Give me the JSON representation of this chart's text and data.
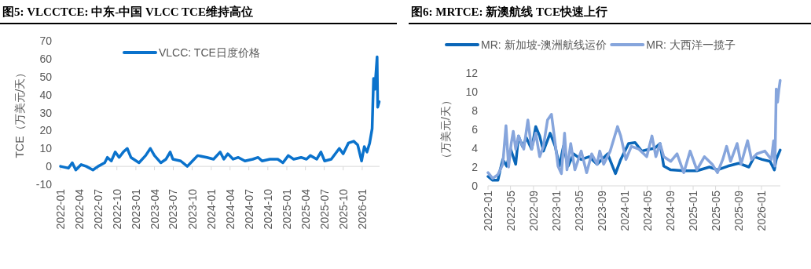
{
  "chart_data": [
    {
      "type": "line",
      "title": "图5:  VLCCTCE:  中东-中国 VLCC TCE维持高位",
      "ylabel": "TCE（万美元/天）",
      "legend": "top",
      "grid": false,
      "line_style": "solid",
      "xlim": [
        "2022-01-01",
        "2026-03-26"
      ],
      "ylim": [
        -10,
        70
      ],
      "yticks": [
        -10,
        0,
        10,
        20,
        30,
        40,
        50,
        60,
        70
      ],
      "xticks": [
        "2022-01",
        "2022-04",
        "2022-07",
        "2022-10",
        "2023-01",
        "2023-04",
        "2023-07",
        "2023-10",
        "2024-01",
        "2024-04",
        "2024-07",
        "2024-10",
        "2025-01",
        "2025-04",
        "2025-07",
        "2025-10",
        "2026-01"
      ],
      "series": [
        {
          "name": "VLCC:  TCE日度价格",
          "color": "#0a72cc",
          "x": [
            "2022-01-01",
            "2022-02-08",
            "2022-02-27",
            "2022-03-16",
            "2022-04-11",
            "2022-05-06",
            "2022-06-07",
            "2022-07-02",
            "2022-08-03",
            "2022-08-16",
            "2022-09-04",
            "2022-09-23",
            "2022-10-12",
            "2022-11-01",
            "2022-11-20",
            "2022-12-08",
            "2023-01-16",
            "2023-02-17",
            "2023-03-12",
            "2023-04-01",
            "2023-05-02",
            "2023-05-27",
            "2023-06-16",
            "2023-06-29",
            "2023-08-06",
            "2023-09-07",
            "2023-10-02",
            "2023-10-27",
            "2023-12-11",
            "2024-01-12",
            "2024-02-13",
            "2024-03-02",
            "2024-03-21",
            "2024-04-16",
            "2024-05-11",
            "2024-06-12",
            "2024-07-20",
            "2024-08-15",
            "2024-09-03",
            "2024-10-11",
            "2024-11-18",
            "2024-12-13",
            "2025-01-08",
            "2025-02-03",
            "2025-03-11",
            "2025-04-06",
            "2025-04-25",
            "2025-05-26",
            "2025-06-15",
            "2025-07-03",
            "2025-08-04",
            "2025-09-12",
            "2025-10-01",
            "2025-10-26",
            "2025-11-21",
            "2025-12-10",
            "2025-12-29",
            "2026-01-11",
            "2026-01-24",
            "2026-02-06",
            "2026-02-18",
            "2026-02-25",
            "2026-03-03",
            "2026-03-14",
            "2026-03-17",
            "2026-03-24"
          ],
          "values": [
            0,
            -1,
            2,
            -2,
            1,
            0,
            -2,
            0,
            2,
            5,
            3,
            8,
            5,
            8,
            10,
            5,
            2,
            6,
            10,
            6,
            2,
            4,
            8,
            4,
            3,
            0,
            3,
            6,
            5,
            4,
            8,
            4,
            7,
            4,
            5,
            3,
            4,
            5,
            3,
            4,
            4,
            2,
            6,
            4,
            5,
            4,
            6,
            4,
            8,
            3,
            4,
            10,
            7,
            13,
            14,
            12,
            3,
            11,
            8,
            13,
            21,
            49,
            43,
            61,
            33,
            36
          ]
        }
      ]
    },
    {
      "type": "line",
      "title": "图6:  MRTCE:  新澳航线 TCE快速上行",
      "ylabel": "（万美元/天）",
      "legend": "top",
      "grid": false,
      "line_style": "solid",
      "xlim": [
        "2022-01-01",
        "2026-04-12"
      ],
      "ylim": [
        0,
        12
      ],
      "yticks": [
        0,
        2,
        4,
        6,
        8,
        10,
        12
      ],
      "xticks": [
        "2022-01",
        "2022-05",
        "2022-09",
        "2023-01",
        "2023-05",
        "2023-09",
        "2024-01",
        "2024-05",
        "2024-09",
        "2025-01",
        "2025-05",
        "2025-09",
        "2026-01"
      ],
      "series": [
        {
          "name": "MR:  新加坡-澳洲航线运价",
          "color": "#0a66b8",
          "x": [
            "2022-01-01",
            "2022-01-26",
            "2022-02-23",
            "2022-03-07",
            "2022-03-21",
            "2022-04-11",
            "2022-05-02",
            "2022-05-29",
            "2022-06-13",
            "2022-07-04",
            "2022-07-25",
            "2022-08-22",
            "2022-09-13",
            "2022-10-04",
            "2022-10-24",
            "2022-11-29",
            "2022-12-26",
            "2023-01-17",
            "2023-02-08",
            "2023-03-05",
            "2023-04-03",
            "2023-05-14",
            "2023-06-25",
            "2023-08-07",
            "2023-10-02",
            "2023-11-13",
            "2023-12-11",
            "2024-01-22",
            "2024-02-26",
            "2024-04-01",
            "2024-05-12",
            "2024-06-10",
            "2024-07-08",
            "2024-07-28",
            "2024-09-03",
            "2024-11-12",
            "2025-01-21",
            "2025-03-29",
            "2025-05-11",
            "2025-07-06",
            "2025-09-01",
            "2025-10-26",
            "2025-11-24",
            "2026-01-05",
            "2026-02-16",
            "2026-03-11",
            "2026-03-21",
            "2026-04-11"
          ],
          "values": [
            1.0,
            0.6,
            0.6,
            1.7,
            2.8,
            2.1,
            3.9,
            2.3,
            5.3,
            4.2,
            5.1,
            3.9,
            6.3,
            5.3,
            3.7,
            5.6,
            4.2,
            2.1,
            4.2,
            2.1,
            3.4,
            2.8,
            3.1,
            2.3,
            3.4,
            1.3,
            2.8,
            4.5,
            4.6,
            3.7,
            3.9,
            4.0,
            4.5,
            2.1,
            1.7,
            1.6,
            1.6,
            2.0,
            1.7,
            2.1,
            2.4,
            2.0,
            3.1,
            2.8,
            2.6,
            1.7,
            2.8,
            3.8
          ]
        },
        {
          "name": "MR:  大西洋一揽子",
          "color": "#86a5dc",
          "x": [
            "2022-01-01",
            "2022-01-26",
            "2022-02-23",
            "2022-03-21",
            "2022-04-07",
            "2022-04-21",
            "2022-05-05",
            "2022-05-16",
            "2022-05-29",
            "2022-06-13",
            "2022-07-11",
            "2022-08-02",
            "2022-08-22",
            "2022-09-13",
            "2022-10-04",
            "2022-10-24",
            "2022-11-15",
            "2022-12-06",
            "2022-12-19",
            "2023-01-10",
            "2023-01-28",
            "2023-02-14",
            "2023-02-27",
            "2023-03-19",
            "2023-04-10",
            "2023-05-14",
            "2023-06-12",
            "2023-07-09",
            "2023-08-07",
            "2023-08-21",
            "2023-09-11",
            "2023-10-16",
            "2023-11-24",
            "2023-12-11",
            "2024-01-08",
            "2024-02-06",
            "2024-03-17",
            "2024-04-28",
            "2024-05-26",
            "2024-06-16",
            "2024-07-08",
            "2024-07-28",
            "2024-09-03",
            "2024-10-07",
            "2024-11-12",
            "2024-12-16",
            "2025-01-21",
            "2025-03-02",
            "2025-04-13",
            "2025-05-11",
            "2025-06-08",
            "2025-06-29",
            "2025-07-20",
            "2025-08-24",
            "2025-09-14",
            "2025-10-19",
            "2025-11-09",
            "2025-12-07",
            "2026-01-19",
            "2026-02-23",
            "2026-03-07",
            "2026-03-14",
            "2026-03-21",
            "2026-03-28",
            "2026-04-04",
            "2026-04-11"
          ],
          "values": [
            1.4,
            0.8,
            1.2,
            2.3,
            6.4,
            2.0,
            4.5,
            5.8,
            3.9,
            5.3,
            3.9,
            7.0,
            3.9,
            5.6,
            3.1,
            4.2,
            7.0,
            7.6,
            5.6,
            2.1,
            1.3,
            5.6,
            1.7,
            4.5,
            1.7,
            3.7,
            1.4,
            3.4,
            2.3,
            3.7,
            2.3,
            3.7,
            6.3,
            5.3,
            2.8,
            4.2,
            3.9,
            3.1,
            5.3,
            3.1,
            4.5,
            3.1,
            2.6,
            3.4,
            1.4,
            3.7,
            1.7,
            3.1,
            2.3,
            1.4,
            2.8,
            4.2,
            2.6,
            4.5,
            2.3,
            4.8,
            2.8,
            3.4,
            3.7,
            2.8,
            4.8,
            2.1,
            10.3,
            8.9,
            10.2,
            11.2
          ]
        }
      ]
    }
  ]
}
